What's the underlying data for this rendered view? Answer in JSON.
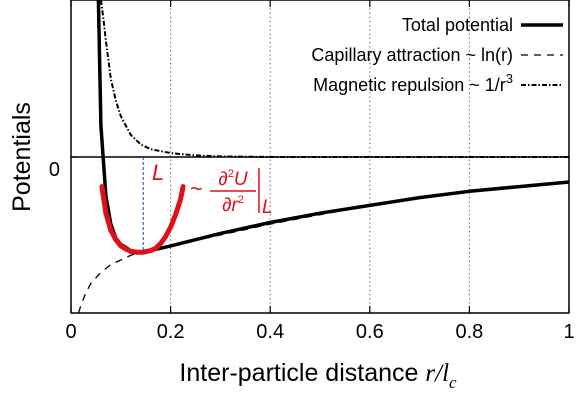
{
  "chart_data": {
    "type": "line",
    "xlabel_prefix": "Inter-particle distance ",
    "xlabel_var_r": "r",
    "xlabel_slash": "/",
    "xlabel_var_l": "l",
    "xlabel_sub": "c",
    "ylabel": "Potentials",
    "xlim": [
      0,
      1
    ],
    "ylim": [
      -1.0,
      1.0
    ],
    "x_ticks": [
      0,
      0.2,
      0.4,
      0.6,
      0.8,
      1
    ],
    "x_tick_labels": [
      "0",
      "0.2",
      "0.4",
      "0.6",
      "0.8",
      "1"
    ],
    "y_ticks": [
      0
    ],
    "y_tick_labels": [
      "0"
    ],
    "grid": "x-dotted",
    "legend_position": "top-right",
    "series": [
      {
        "name": "Total potential",
        "style": "solid-thick",
        "color": "#000000",
        "x": [
          0.055,
          0.06,
          0.07,
          0.08,
          0.09,
          0.1,
          0.12,
          0.14,
          0.16,
          0.2,
          0.25,
          0.3,
          0.4,
          0.5,
          0.6,
          0.7,
          0.8,
          0.9,
          1.0
        ],
        "y": [
          1.0,
          0.2,
          -0.25,
          -0.43,
          -0.52,
          -0.56,
          -0.6,
          -0.61,
          -0.6,
          -0.57,
          -0.53,
          -0.49,
          -0.42,
          -0.36,
          -0.31,
          -0.26,
          -0.22,
          -0.19,
          -0.16
        ]
      },
      {
        "name": "Capillary attraction ~ ln(r)",
        "style": "dashed",
        "color": "#000000",
        "x": [
          0.015,
          0.02,
          0.03,
          0.04,
          0.06,
          0.08,
          0.1,
          0.12,
          0.15,
          0.2,
          0.3,
          0.4,
          0.5,
          0.6,
          0.7,
          0.8,
          0.9,
          1.0
        ],
        "y": [
          -1.0,
          -0.95,
          -0.87,
          -0.81,
          -0.74,
          -0.69,
          -0.66,
          -0.63,
          -0.6,
          -0.57,
          -0.5,
          -0.43,
          -0.37,
          -0.31,
          -0.26,
          -0.22,
          -0.19,
          -0.16
        ]
      },
      {
        "name": "Magnetic repulsion ~ 1/r",
        "name_sup": "3",
        "style": "dash-dot",
        "color": "#000000",
        "x": [
          0.06,
          0.065,
          0.07,
          0.08,
          0.09,
          0.1,
          0.12,
          0.14,
          0.16,
          0.2,
          0.25,
          0.3,
          0.4,
          0.6,
          0.8,
          1.0
        ],
        "y": [
          1.0,
          0.88,
          0.74,
          0.5,
          0.36,
          0.26,
          0.14,
          0.08,
          0.05,
          0.025,
          0.01,
          0.004,
          0.0,
          0.0,
          0.0,
          0.0
        ]
      }
    ],
    "zero_line": {
      "y": 0
    },
    "minimum": {
      "x": 0.145,
      "y": -0.61,
      "label": "L",
      "fit_x": [
        0.062,
        0.07,
        0.08,
        0.09,
        0.1,
        0.11,
        0.12,
        0.13,
        0.145,
        0.16,
        0.17,
        0.18,
        0.19,
        0.2,
        0.21,
        0.22,
        0.225
      ],
      "fit_y": [
        -0.19,
        -0.36,
        -0.47,
        -0.53,
        -0.57,
        -0.59,
        -0.605,
        -0.61,
        -0.61,
        -0.6,
        -0.585,
        -0.555,
        -0.51,
        -0.45,
        -0.37,
        -0.27,
        -0.19
      ],
      "fit_color": "#e0101a"
    },
    "annotation": {
      "prefix": "~",
      "partial": "∂",
      "sup2": "2",
      "var_U": "U",
      "var_r": "r",
      "bar_sub": "L",
      "color": "#e0101a"
    }
  }
}
